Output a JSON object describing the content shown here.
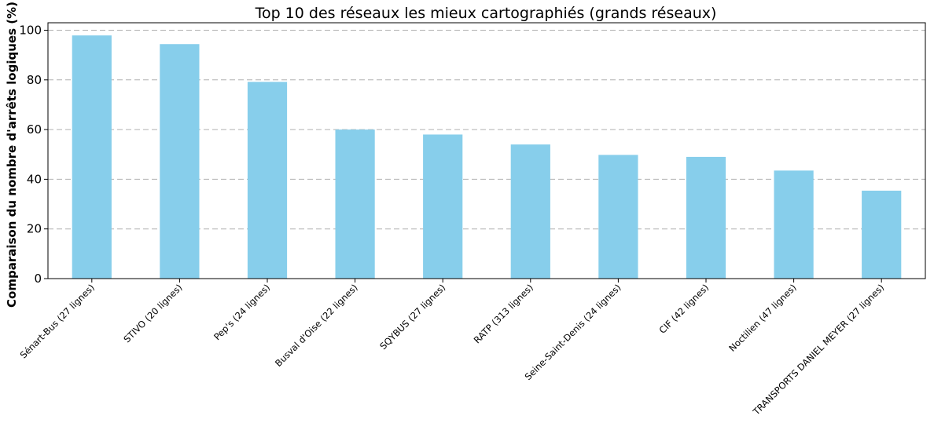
{
  "chart_data": {
    "type": "bar",
    "title": "Top 10 des réseaux les mieux cartographiés (grands réseaux)",
    "xlabel": "",
    "ylabel": "Comparaison du nombre d'arrêts logiques (%)",
    "categories": [
      "Sénart-Bus (27 lignes)",
      "STIVO (20 lignes)",
      "Pep's (24 lignes)",
      "Busval d'Oise (22 lignes)",
      "SQYBUS (27 lignes)",
      "RATP (313 lignes)",
      "Seine-Saint-Denis (24 lignes)",
      "CIF (42 lignes)",
      "Noctilien (47 lignes)",
      "TRANSPORTS DANIEL MEYER (27 lignes)"
    ],
    "values": [
      97.9,
      94.4,
      79.2,
      60.0,
      58.0,
      54.0,
      49.8,
      49.0,
      43.5,
      35.4
    ],
    "ylim": [
      0,
      103
    ],
    "yticks": [
      0,
      20,
      40,
      60,
      80,
      100
    ],
    "grid": "y-dashed",
    "legend": "none",
    "bar_color": "#87ceeb",
    "grid_color": "#b0b0b0"
  }
}
